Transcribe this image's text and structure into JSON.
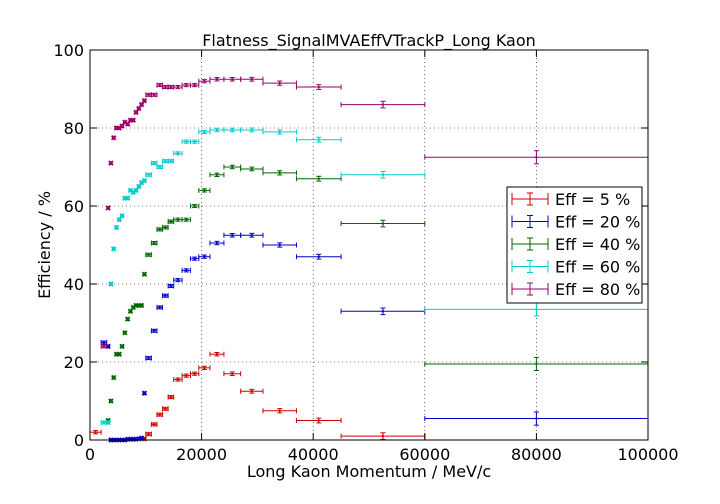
{
  "chart_data": {
    "type": "scatter",
    "title": "Flatness_SignalMVAEffVTrackP_Long Kaon",
    "xlabel": "Long Kaon Momentum / MeV/c",
    "ylabel": "Efficiency / %",
    "xlim": [
      0,
      100000
    ],
    "ylim": [
      0,
      100
    ],
    "xticks": [
      "0",
      "20000",
      "40000",
      "60000",
      "80000",
      "100000"
    ],
    "yticks": [
      "0",
      "20",
      "40",
      "60",
      "80",
      "100"
    ],
    "grid": true,
    "legend_position": "center-right",
    "bins": [
      [
        0,
        2000
      ],
      [
        2000,
        3000
      ],
      [
        3000,
        3500
      ],
      [
        3500,
        4000
      ],
      [
        4000,
        4500
      ],
      [
        4500,
        5000
      ],
      [
        5000,
        5500
      ],
      [
        5500,
        6000
      ],
      [
        6000,
        6500
      ],
      [
        6500,
        7000
      ],
      [
        7000,
        7500
      ],
      [
        7500,
        8000
      ],
      [
        8000,
        8500
      ],
      [
        8500,
        9000
      ],
      [
        9000,
        9500
      ],
      [
        9500,
        10000
      ],
      [
        10000,
        11000
      ],
      [
        11000,
        12000
      ],
      [
        12000,
        13000
      ],
      [
        13000,
        14000
      ],
      [
        14000,
        15000
      ],
      [
        15000,
        16500
      ],
      [
        16500,
        18000
      ],
      [
        18000,
        19500
      ],
      [
        19500,
        21500
      ],
      [
        21500,
        24000
      ],
      [
        24000,
        27000
      ],
      [
        27000,
        31000
      ],
      [
        31000,
        37000
      ],
      [
        37000,
        45000
      ],
      [
        45000,
        60000
      ],
      [
        60000,
        100000
      ]
    ],
    "series": [
      {
        "name": "Eff = 5 %",
        "color": "#cc0000",
        "values": [
          2,
          null,
          null,
          null,
          null,
          null,
          null,
          null,
          null,
          null,
          null,
          null,
          null,
          null,
          null,
          0.3,
          1.5,
          4,
          6.5,
          8,
          11,
          15.5,
          16.5,
          17,
          18.5,
          22,
          17,
          12.5,
          7.5,
          5,
          1,
          null
        ]
      },
      {
        "name": "Eff = 20 %",
        "color": "#0000cc",
        "values": [
          null,
          25,
          24,
          0,
          0,
          0,
          0,
          0,
          0,
          0.2,
          0.2,
          0.2,
          0.2,
          0.3,
          0.5,
          12,
          21,
          28,
          34,
          37,
          39.5,
          41,
          43.5,
          46.5,
          47,
          50.5,
          52.5,
          52.5,
          50,
          47,
          33,
          5.5
        ]
      },
      {
        "name": "Eff = 40 %",
        "color": "#006600",
        "values": [
          null,
          null,
          5,
          10,
          16,
          22,
          22,
          24,
          27.5,
          31,
          33,
          34,
          34.5,
          34.5,
          34.5,
          42.5,
          47.5,
          50.5,
          54,
          54.5,
          56,
          56.5,
          56.5,
          60,
          64,
          68,
          70,
          69.5,
          68.5,
          67,
          55.5,
          19.5
        ]
      },
      {
        "name": "Eff = 60 %",
        "color": "#00cccc",
        "values": [
          null,
          4.5,
          4.5,
          40,
          49,
          54.5,
          56.5,
          57.5,
          62,
          62,
          64,
          63.5,
          64,
          65,
          66,
          66.5,
          68,
          71,
          70,
          71.5,
          71.5,
          73.5,
          76.5,
          76.5,
          79,
          79.5,
          79.5,
          79.5,
          79,
          77,
          68,
          33.5
        ]
      },
      {
        "name": "Eff = 80 %",
        "color": "#990066",
        "values": [
          null,
          24,
          59.5,
          71,
          77.5,
          80,
          80,
          80.5,
          81.5,
          81,
          82,
          82,
          84,
          85,
          86,
          87,
          88.5,
          88.5,
          91,
          90.5,
          90.5,
          90.5,
          91,
          91,
          92,
          92.5,
          92.5,
          92.5,
          91.5,
          90.5,
          86,
          72.5
        ]
      }
    ]
  }
}
